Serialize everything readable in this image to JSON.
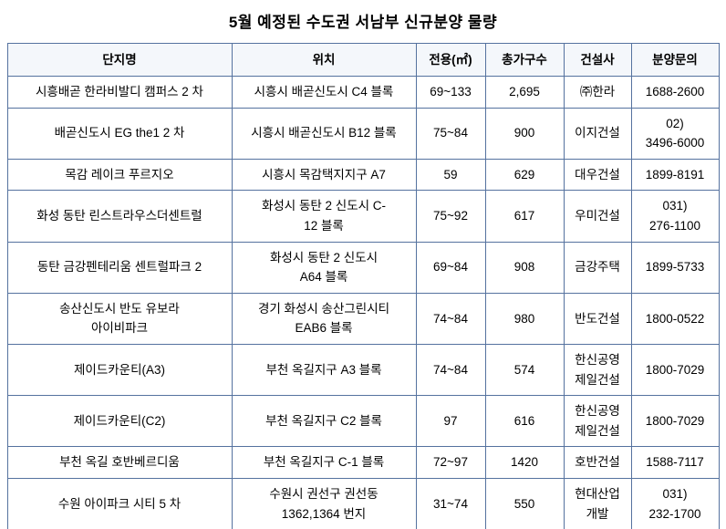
{
  "title": "5월 예정된 수도권 서남부 신규분양 물량",
  "table": {
    "headers": {
      "name": "단지명",
      "location": "위치",
      "area": "전용(㎡)",
      "households": "총가구수",
      "builder": "건설사",
      "contact": "분양문의"
    },
    "rows": [
      {
        "name": "시흥배곧 한라비발디  캠퍼스 2 차",
        "location": "시흥시  배곧신도시  C4 블록",
        "area": "69~133",
        "households": "2,695",
        "builder": "㈜한라",
        "contact": "1688-2600"
      },
      {
        "name": "배곧신도시  EG the1 2 차",
        "location": "시흥시  배곧신도시  B12 블록",
        "area": "75~84",
        "households": "900",
        "builder": "이지건설",
        "contact": "02)\n3496-6000"
      },
      {
        "name": "목감  레이크  푸르지오",
        "location": "시흥시  목감택지지구   A7",
        "area": "59",
        "households": "629",
        "builder": "대우건설",
        "contact": "1899-8191"
      },
      {
        "name": "화성  동탄  린스트라우스더센트럴",
        "location": "화성시  동탄 2 신도시  C-\n12 블록",
        "area": "75~92",
        "households": "617",
        "builder": "우미건설",
        "contact": "031)\n276-1100"
      },
      {
        "name": "동탄  금강펜테리움  센트럴파크 2",
        "location": "화성시  동탄 2 신도시\nA64 블록",
        "area": "69~84",
        "households": "908",
        "builder": "금강주택",
        "contact": "1899-5733"
      },
      {
        "name": "송산신도시  반도  유보라\n아이비파크",
        "location": "경기  화성시  송산그린시티\nEAB6 블록",
        "area": "74~84",
        "households": "980",
        "builder": "반도건설",
        "contact": "1800-0522"
      },
      {
        "name": "제이드카운티(A3)",
        "location": "부천  옥길지구   A3 블록",
        "area": "74~84",
        "households": "574",
        "builder": "한신공영\n제일건설",
        "contact": "1800-7029"
      },
      {
        "name": "제이드카운티(C2)",
        "location": "부천  옥길지구   C2 블록",
        "area": "97",
        "households": "616",
        "builder": "한신공영\n제일건설",
        "contact": "1800-7029"
      },
      {
        "name": "부천  옥길  호반베르디움",
        "location": "부천  옥길지구   C-1 블록",
        "area": "72~97",
        "households": "1420",
        "builder": "호반건설",
        "contact": "1588-7117"
      },
      {
        "name": "수원  아이파크  시티  5 차",
        "location": "수원시  권선구  권선동\n1362,1364 번지",
        "area": "31~74",
        "households": "550",
        "builder": "현대산업\n개발",
        "contact": "031)\n232-1700"
      }
    ]
  }
}
